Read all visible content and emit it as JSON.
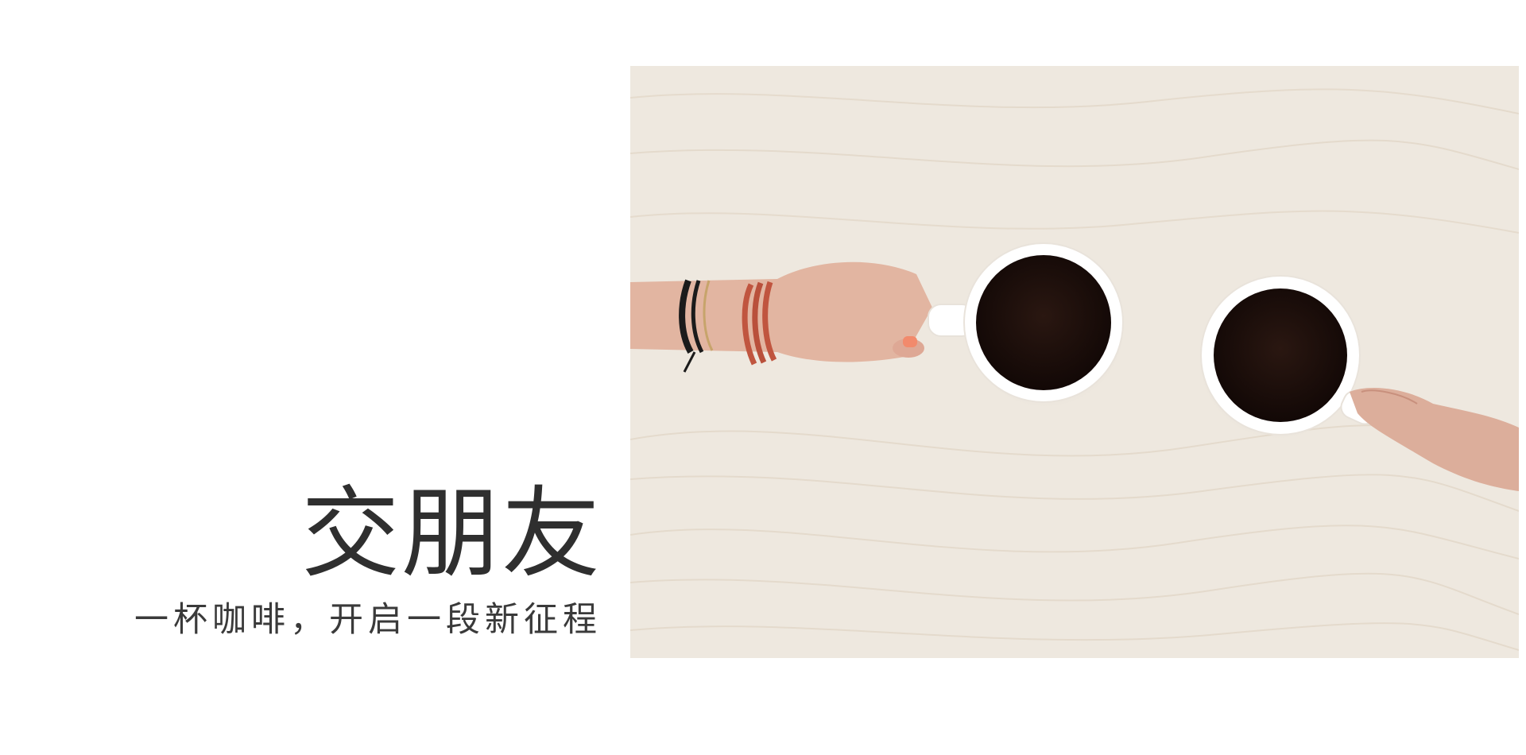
{
  "slide": {
    "title": "交朋友",
    "subtitle": "一杯咖啡，开启一段新征程"
  },
  "photo": {
    "subject": "coffee-cups-and-hands",
    "colors": {
      "table": "#eee8df",
      "wood_grain": "#e2d7c8",
      "cup": "#ffffff",
      "coffee": "#1b0e0a",
      "skin": "#e2b5a1",
      "bracelet_red": "#c0553f",
      "bracelet_black": "#1b1b1b",
      "nail": "#f28a6c"
    }
  }
}
